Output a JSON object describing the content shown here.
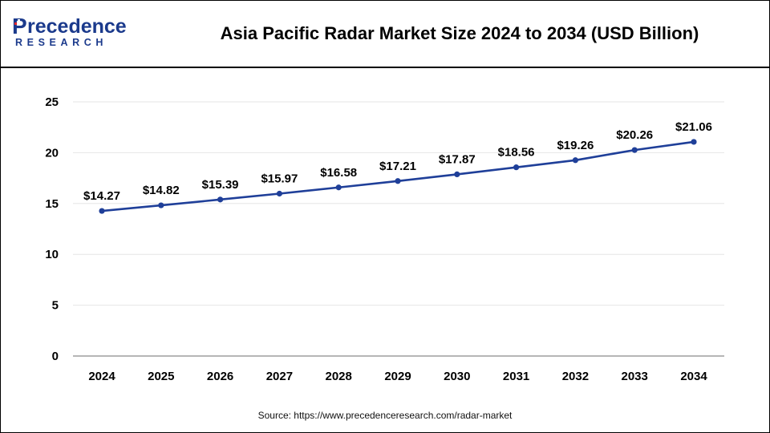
{
  "header": {
    "logo_word": "recedence",
    "logo_initial": "P",
    "logo_sub": "RESEARCH"
  },
  "colors": {
    "line": "#1f3f99",
    "brand": "#1b3a8c",
    "grid": "#e6e6e6"
  },
  "source": "Source: https://www.precedenceresearch.com/radar-market",
  "chart_data": {
    "type": "line",
    "title": "Asia Pacific Radar Market Size 2024 to 2034 (USD Billion)",
    "xlabel": "",
    "ylabel": "",
    "categories": [
      "2024",
      "2025",
      "2026",
      "2027",
      "2028",
      "2029",
      "2030",
      "2031",
      "2032",
      "2033",
      "2034"
    ],
    "series": [
      {
        "values": [
          14.27,
          14.82,
          15.39,
          15.97,
          16.58,
          17.21,
          17.87,
          18.56,
          19.26,
          20.26,
          21.06
        ],
        "labels": [
          "$14.27",
          "$14.82",
          "$15.39",
          "$15.97",
          "$16.58",
          "$17.21",
          "$17.87",
          "$18.56",
          "$19.26",
          "$20.26",
          "$21.06"
        ]
      }
    ],
    "ylim": [
      0,
      25
    ],
    "yticks": [
      "0",
      "5",
      "10",
      "15",
      "20",
      "25"
    ],
    "grid": true,
    "legend": "none"
  }
}
